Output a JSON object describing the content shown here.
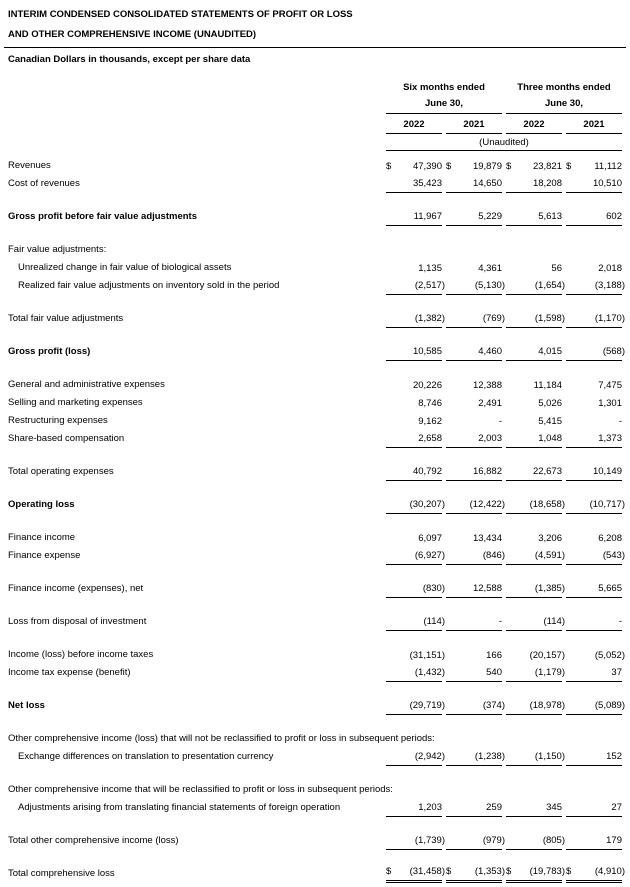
{
  "page": {
    "title_line1": "INTERIM CONDENSED CONSOLIDATED STATEMENTS OF PROFIT OR LOSS",
    "title_line2": "AND OTHER COMPREHENSIVE INCOME (UNAUDITED)",
    "subtitle": "Canadian Dollars in thousands, except per share data"
  },
  "table": {
    "currency_symbol": "$",
    "column_groups": [
      {
        "title": "Six months ended",
        "date": "June 30,"
      },
      {
        "title": "Three months ended",
        "date": "June 30,"
      }
    ],
    "year_headers": [
      "2022",
      "2021",
      "2022",
      "2021"
    ],
    "unaudited_note": "(Unaudited)",
    "rows": [
      {
        "label": "Revenues",
        "values": [
          "47,390",
          "19,879",
          "23,821",
          "11,112"
        ],
        "dollar": true
      },
      {
        "label": "Cost of revenues",
        "values": [
          "35,423",
          "14,650",
          "18,208",
          "10,510"
        ],
        "underline": "single"
      },
      {
        "label": "Gross profit before fair value adjustments",
        "values": [
          "11,967",
          "5,229",
          "5,613",
          "602"
        ],
        "bold": true,
        "gap": true,
        "underline": "single"
      },
      {
        "label": "Fair value adjustments:",
        "values": null,
        "gap": true
      },
      {
        "label": "Unrealized change in fair value of biological assets",
        "values": [
          "1,135",
          "4,361",
          "56",
          "2,018"
        ],
        "indent": true
      },
      {
        "label": "Realized fair value adjustments on inventory sold in the period",
        "values": [
          "(2,517)",
          "(5,130)",
          "(1,654)",
          "(3,188)"
        ],
        "indent": true,
        "underline": "single"
      },
      {
        "label": "Total fair value adjustments",
        "values": [
          "(1,382)",
          "(769)",
          "(1,598)",
          "(1,170)"
        ],
        "gap": true,
        "underline": "single"
      },
      {
        "label": "Gross profit (loss)",
        "values": [
          "10,585",
          "4,460",
          "4,015",
          "(568)"
        ],
        "bold": true,
        "gap": true,
        "underline": "single"
      },
      {
        "label": "General and administrative expenses",
        "values": [
          "20,226",
          "12,388",
          "11,184",
          "7,475"
        ],
        "gap": true
      },
      {
        "label": "Selling and marketing expenses",
        "values": [
          "8,746",
          "2,491",
          "5,026",
          "1,301"
        ]
      },
      {
        "label": "Restructuring expenses",
        "values": [
          "9,162",
          "-",
          "5,415",
          "-"
        ]
      },
      {
        "label": "Share-based compensation",
        "values": [
          "2,658",
          "2,003",
          "1,048",
          "1,373"
        ],
        "underline": "single"
      },
      {
        "label": "Total operating expenses",
        "values": [
          "40,792",
          "16,882",
          "22,673",
          "10,149"
        ],
        "gap": true,
        "underline": "single"
      },
      {
        "label": "Operating loss",
        "values": [
          "(30,207)",
          "(12,422)",
          "(18,658)",
          "(10,717)"
        ],
        "bold": true,
        "gap": true,
        "underline": "single"
      },
      {
        "label": "Finance income",
        "values": [
          "6,097",
          "13,434",
          "3,206",
          "6,208"
        ],
        "gap": true
      },
      {
        "label": "Finance expense",
        "values": [
          "(6,927)",
          "(846)",
          "(4,591)",
          "(543)"
        ],
        "underline": "single"
      },
      {
        "label": "Finance income (expenses), net",
        "values": [
          "(830)",
          "12,588",
          "(1,385)",
          "5,665"
        ],
        "gap": true,
        "underline": "single"
      },
      {
        "label": "Loss from disposal of investment",
        "values": [
          "(114)",
          "-",
          "(114)",
          "-"
        ],
        "gap": true,
        "underline": "single"
      },
      {
        "label": "Income (loss) before income taxes",
        "values": [
          "(31,151)",
          "166",
          "(20,157)",
          "(5,052)"
        ],
        "gap": true
      },
      {
        "label": "Income tax expense (benefit)",
        "values": [
          "(1,432)",
          "540",
          "(1,179)",
          "37"
        ],
        "underline": "single"
      },
      {
        "label": "Net loss",
        "values": [
          "(29,719)",
          "(374)",
          "(18,978)",
          "(5,089)"
        ],
        "bold": true,
        "gap": true,
        "underline": "single"
      },
      {
        "label": "Other comprehensive income (loss) that will not be reclassified to profit or loss in subsequent periods:",
        "values": null,
        "gap": true
      },
      {
        "label": "Exchange differences on translation to presentation currency",
        "values": [
          "(2,942)",
          "(1,238)",
          "(1,150)",
          "152"
        ],
        "indent": true,
        "underline": "single"
      },
      {
        "label": "Other comprehensive income that will be reclassified to profit or loss in subsequent periods:",
        "values": null,
        "gap": true
      },
      {
        "label": "Adjustments arising from translating financial statements of foreign operation",
        "values": [
          "1,203",
          "259",
          "345",
          "27"
        ],
        "indent": true,
        "underline": "single"
      },
      {
        "label": "Total other comprehensive income (loss)",
        "values": [
          "(1,739)",
          "(979)",
          "(805)",
          "179"
        ],
        "gap": true,
        "underline": "single"
      },
      {
        "label": "Total comprehensive loss",
        "values": [
          "(31,458)",
          "(1,353)",
          "(19,783)",
          "(4,910)"
        ],
        "dollar": true,
        "gap": true,
        "underline": "double"
      }
    ]
  }
}
